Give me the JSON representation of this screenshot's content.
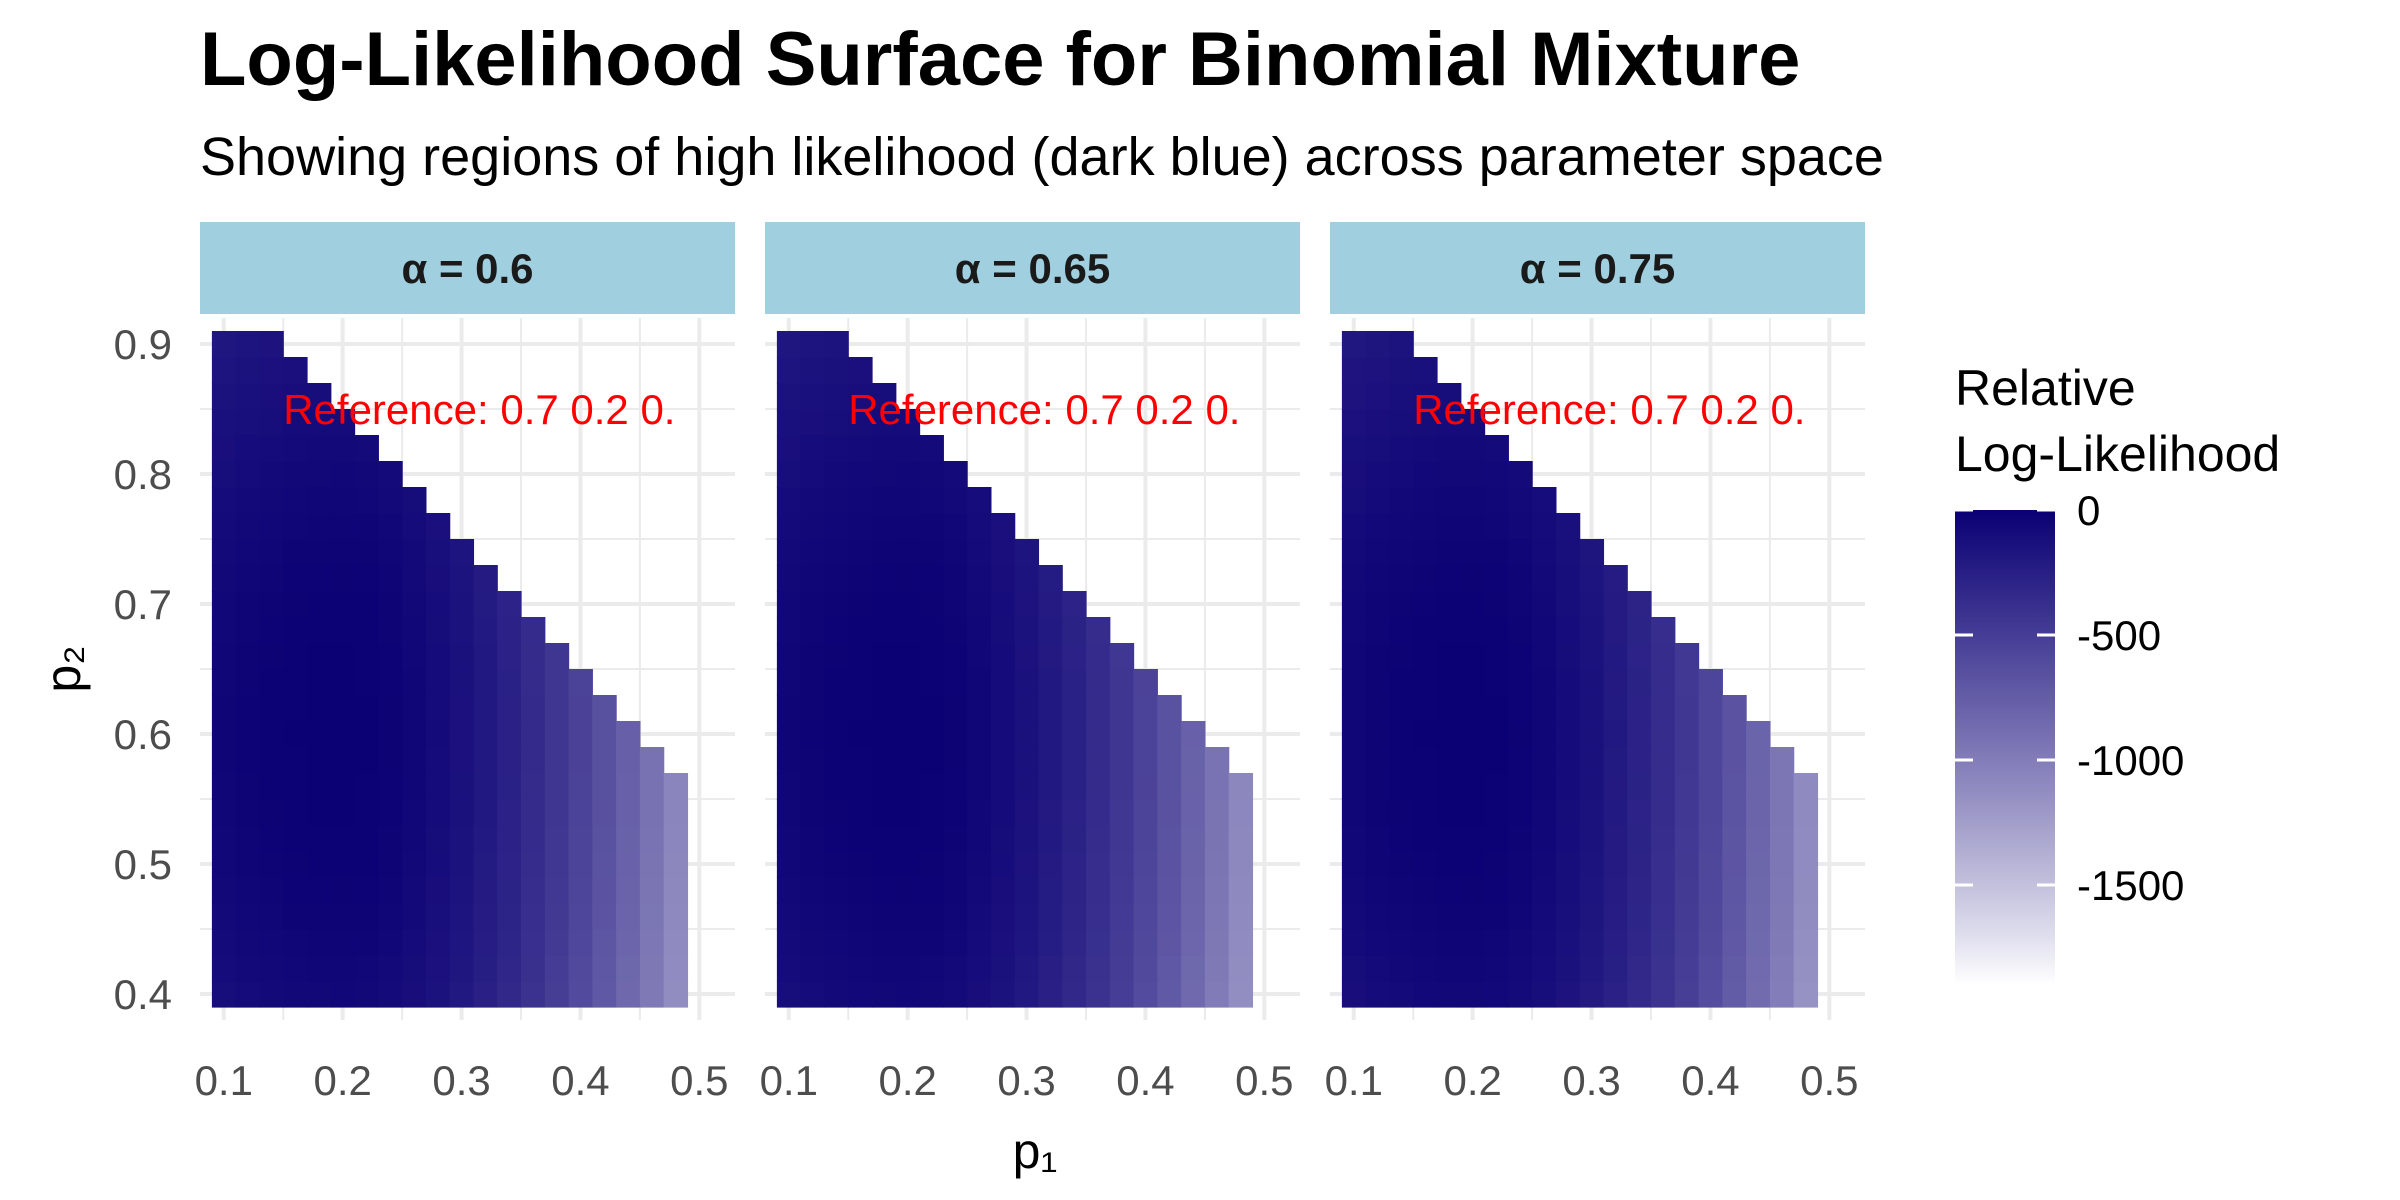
{
  "title": "Log-Likelihood Surface for Binomial Mixture",
  "subtitle": "Showing regions of high likelihood (dark blue) across parameter space",
  "chart_data": {
    "type": "heatmap",
    "xlabel": "p₁",
    "ylabel": "p₂",
    "xlim": [
      0.08,
      0.53
    ],
    "ylim": [
      0.38,
      0.92
    ],
    "x_ticks": [
      0.1,
      0.2,
      0.3,
      0.4,
      0.5
    ],
    "y_ticks": [
      0.4,
      0.5,
      0.6,
      0.7,
      0.8,
      0.9
    ],
    "grid": true,
    "grid_step_x": 0.02,
    "grid_step_y": 0.02,
    "x_cells_start": 0.1,
    "x_cells_end": 0.48,
    "y_cells_start": 0.4,
    "y_cells_end": 0.9,
    "valid_region": "p1 + p2 roughly below 1.05; cells missing outside",
    "legend": {
      "title": "Relative Log-Likelihood",
      "title_lines": [
        "Relative",
        "Log-Likelihood"
      ],
      "position": "right",
      "ticks": [
        0,
        -500,
        -1000,
        -1500
      ],
      "tick_labels": [
        "0",
        "-500",
        "-1000",
        "-1500"
      ],
      "min": -1900,
      "max": 0,
      "color_high": "#0b0074",
      "color_low": "#ffffff"
    },
    "panels": [
      {
        "label": "α = 0.6",
        "alpha": 0.6,
        "peak_p1": 0.2,
        "peak_p2": 0.6,
        "annotation": "Reference: 0.7 0.2 0."
      },
      {
        "label": "α = 0.65",
        "alpha": 0.65,
        "peak_p1": 0.2,
        "peak_p2": 0.6,
        "annotation": "Reference: 0.7 0.2 0."
      },
      {
        "label": "α = 0.75",
        "alpha": 0.75,
        "peak_p1": 0.2,
        "peak_p2": 0.6,
        "annotation": "Reference: 0.7 0.2 0."
      }
    ],
    "facet_strip_color": "#a0cfe0",
    "annotation_color": "#ff0000"
  }
}
